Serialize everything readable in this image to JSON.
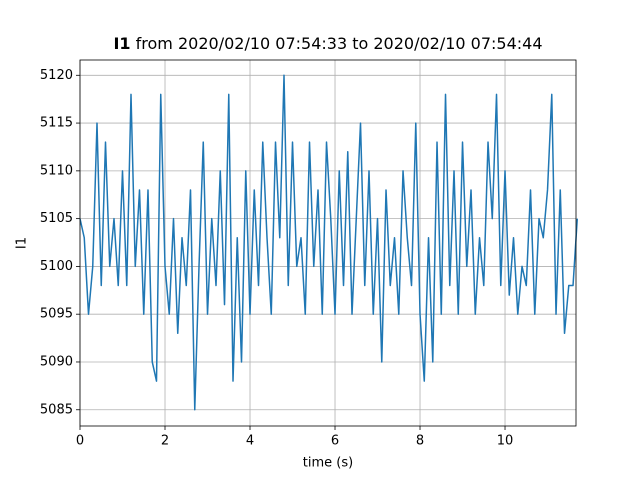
{
  "chart_data": {
    "type": "line",
    "title": [
      "I1",
      " from 2020/02/10 07:54:33 to 2020/02/10 07:54:44"
    ],
    "xlabel": "time (s)",
    "ylabel": "I1",
    "x": [
      0.0,
      0.1,
      0.2,
      0.3,
      0.4,
      0.5,
      0.6,
      0.7,
      0.8,
      0.9,
      1.0,
      1.1,
      1.2,
      1.3,
      1.4,
      1.5,
      1.6,
      1.7,
      1.8,
      1.9,
      2.0,
      2.1,
      2.2,
      2.3,
      2.4,
      2.5,
      2.6,
      2.7,
      2.8,
      2.9,
      3.0,
      3.1,
      3.2,
      3.3,
      3.4,
      3.5,
      3.6,
      3.7,
      3.8,
      3.9,
      4.0,
      4.1,
      4.2,
      4.3,
      4.4,
      4.5,
      4.6,
      4.7,
      4.8,
      4.9,
      5.0,
      5.1,
      5.2,
      5.3,
      5.4,
      5.5,
      5.6,
      5.7,
      5.8,
      5.9,
      6.0,
      6.1,
      6.2,
      6.3,
      6.4,
      6.5,
      6.6,
      6.7,
      6.8,
      6.9,
      7.0,
      7.1,
      7.2,
      7.3,
      7.4,
      7.5,
      7.6,
      7.7,
      7.8,
      7.9,
      8.0,
      8.1,
      8.2,
      8.3,
      8.4,
      8.5,
      8.6,
      8.7,
      8.8,
      8.9,
      9.0,
      9.1,
      9.2,
      9.3,
      9.4,
      9.5,
      9.6,
      9.7,
      9.8,
      9.9,
      10.0,
      10.1,
      10.2,
      10.3,
      10.4,
      10.5,
      10.6,
      10.7,
      10.8,
      10.9,
      11.0,
      11.1,
      11.2,
      11.3,
      11.4,
      11.5,
      11.6,
      11.7
    ],
    "values": [
      5105,
      5103,
      5095,
      5100,
      5115,
      5098,
      5113,
      5100,
      5105,
      5098,
      5110,
      5098,
      5118,
      5100,
      5108,
      5095,
      5108,
      5090,
      5088,
      5118,
      5100,
      5095,
      5105,
      5093,
      5103,
      5098,
      5108,
      5085,
      5100,
      5113,
      5095,
      5105,
      5098,
      5110,
      5096,
      5118,
      5088,
      5103,
      5090,
      5110,
      5095,
      5108,
      5098,
      5113,
      5103,
      5095,
      5113,
      5103,
      5120,
      5098,
      5113,
      5100,
      5103,
      5095,
      5113,
      5100,
      5108,
      5095,
      5113,
      5105,
      5095,
      5110,
      5098,
      5112,
      5095,
      5105,
      5115,
      5098,
      5110,
      5095,
      5105,
      5090,
      5108,
      5098,
      5103,
      5095,
      5110,
      5103,
      5098,
      5115,
      5095,
      5088,
      5103,
      5090,
      5113,
      5095,
      5118,
      5098,
      5110,
      5095,
      5113,
      5100,
      5108,
      5095,
      5103,
      5098,
      5113,
      5105,
      5118,
      5098,
      5110,
      5097,
      5103,
      5095,
      5100,
      5098,
      5108,
      5095,
      5105,
      5103,
      5108,
      5118,
      5095,
      5108,
      5093,
      5098,
      5098,
      5105
    ],
    "color": "#1f77b4",
    "xlim": [
      0,
      11.67
    ],
    "ylim": [
      5083.3,
      5121.6
    ],
    "xticks": [
      0,
      2,
      4,
      6,
      8,
      10
    ],
    "yticks": [
      5085,
      5090,
      5095,
      5100,
      5105,
      5110,
      5115,
      5120
    ],
    "grid": true
  }
}
